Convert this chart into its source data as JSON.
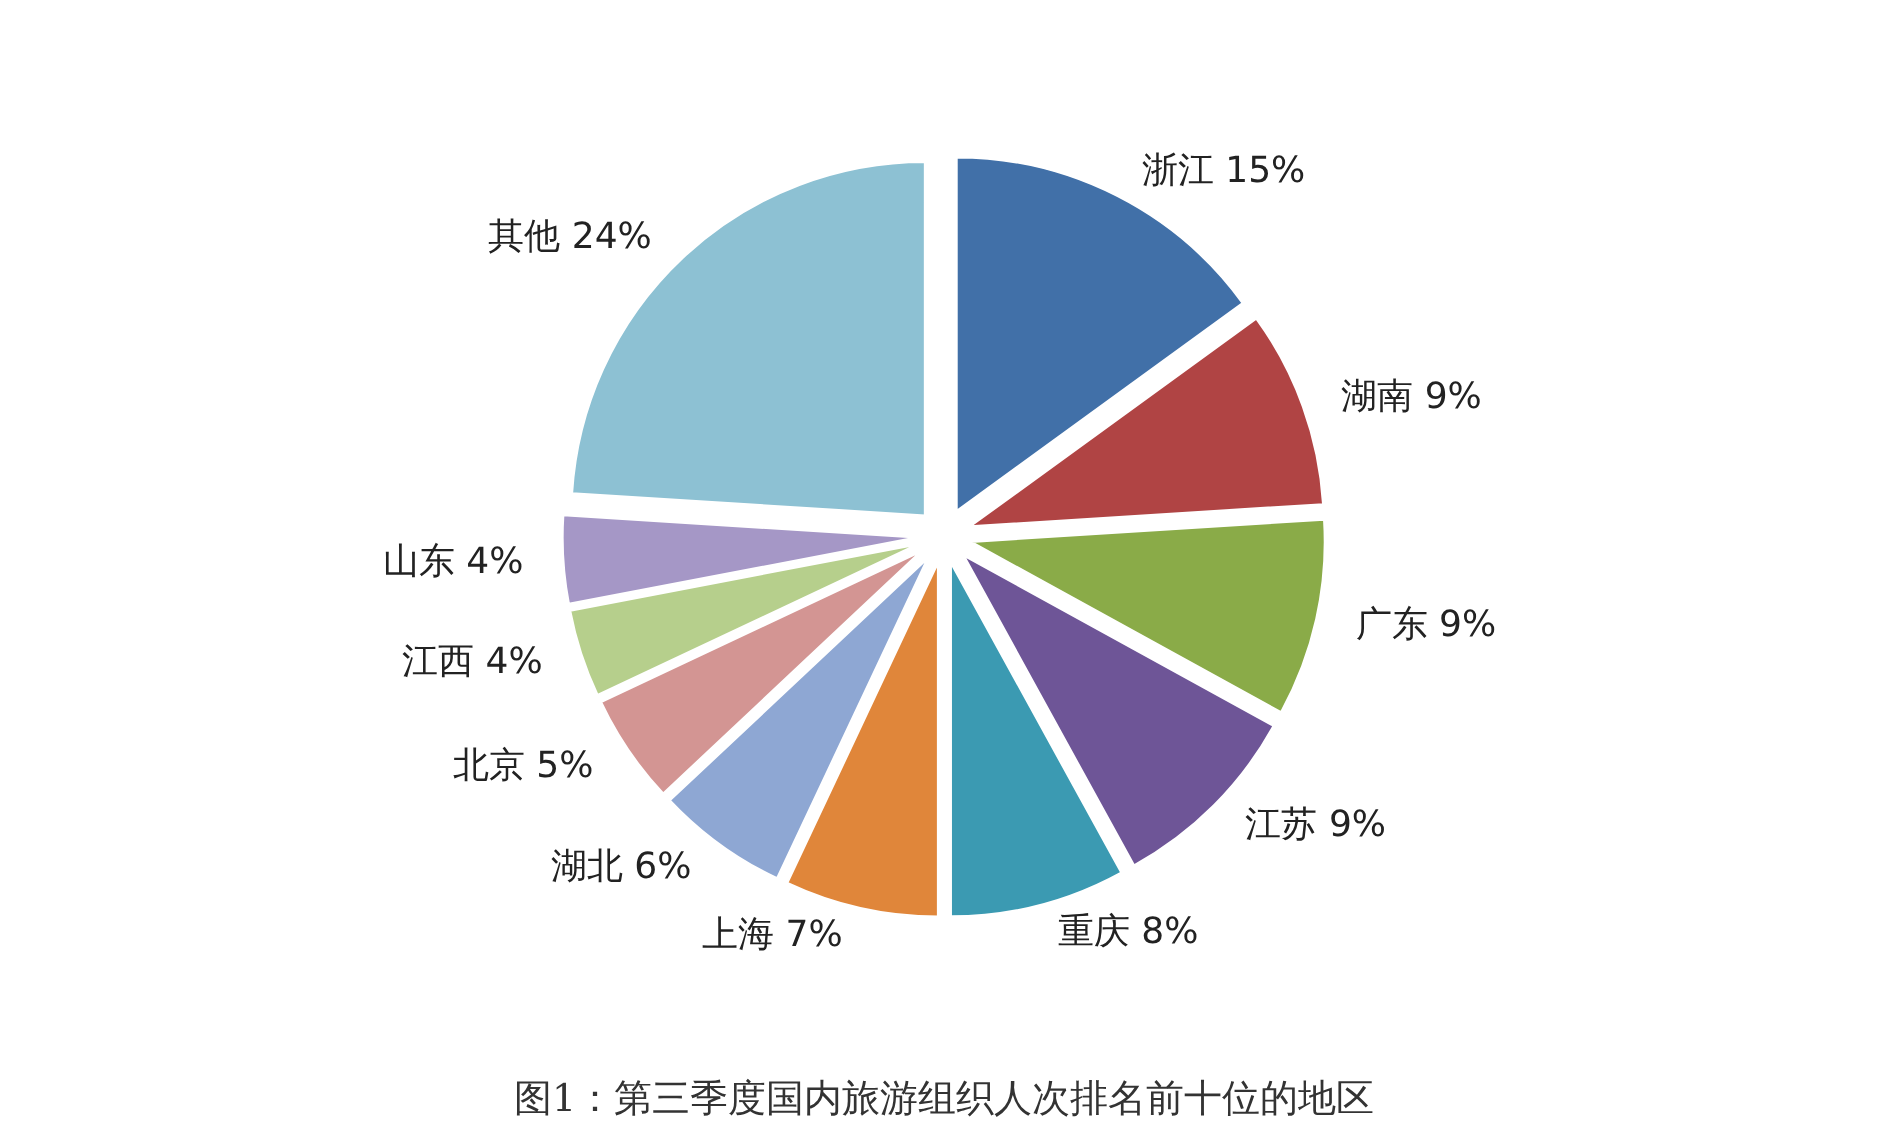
{
  "chart_data": {
    "type": "pie",
    "title": "图1：第三季度国内旅游组织人次排名前十位的地区",
    "categories": [
      "浙江",
      "湖南",
      "广东",
      "江苏",
      "重庆",
      "上海",
      "湖北",
      "北京",
      "江西",
      "山东",
      "其他"
    ],
    "values": [
      15,
      9,
      9,
      9,
      8,
      7,
      6,
      5,
      4,
      4,
      24
    ],
    "value_labels": [
      "15%",
      "9%",
      "9%",
      "9%",
      "8%",
      "7%",
      "6%",
      "5%",
      "4%",
      "4%",
      "24%"
    ],
    "colors": [
      "#4170a8",
      "#b04444",
      "#8aab48",
      "#6e5597",
      "#3b9ab2",
      "#e0863a",
      "#8ea7d3",
      "#d39593",
      "#b6cf8c",
      "#a597c6",
      "#8dc1d3"
    ],
    "legend": false
  }
}
